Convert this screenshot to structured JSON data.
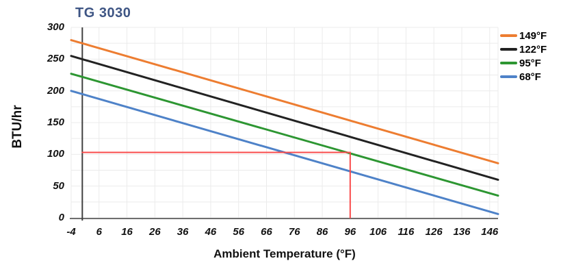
{
  "chart_data": {
    "type": "line",
    "title": "TG 3030",
    "xlabel": "Ambient Temperature (°F)",
    "ylabel": "BTU/hr",
    "xlim": [
      -4,
      149
    ],
    "ylim": [
      0,
      300
    ],
    "x_ticks": [
      -4,
      6,
      16,
      26,
      36,
      46,
      56,
      66,
      76,
      86,
      96,
      106,
      116,
      126,
      136,
      146
    ],
    "y_ticks": [
      0,
      50,
      100,
      150,
      200,
      250,
      300
    ],
    "y_minor_grid_step": 25,
    "x_grid_step": 10,
    "grid": true,
    "legend_position": "top-right-outside",
    "series": [
      {
        "name": "149°F",
        "color": "#ED7D31",
        "points": [
          [
            -4,
            280
          ],
          [
            149,
            86
          ]
        ]
      },
      {
        "name": "122°F",
        "color": "#222222",
        "points": [
          [
            -4,
            255
          ],
          [
            149,
            60
          ]
        ]
      },
      {
        "name": "95°F",
        "color": "#2D9632",
        "points": [
          [
            -4,
            227
          ],
          [
            149,
            35
          ]
        ]
      },
      {
        "name": "68°F",
        "color": "#4E82C8",
        "points": [
          [
            -4,
            200
          ],
          [
            149,
            6
          ]
        ]
      }
    ],
    "annotations": [
      {
        "type": "polyline",
        "color": "#F94B4B",
        "points": [
          [
            0,
            103
          ],
          [
            96,
            103
          ],
          [
            96,
            0
          ]
        ]
      },
      {
        "type": "vline",
        "color": "#3F3F3F",
        "x": 0
      }
    ],
    "style": {
      "title_color": "#3E5584",
      "gridline_color": "#EBEBEB",
      "axis_line_color": "#6E6E6E",
      "series_line_width": 3,
      "annotation_line_width": 2
    }
  }
}
